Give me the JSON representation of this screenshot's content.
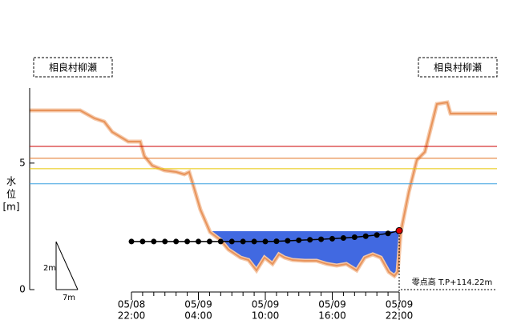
{
  "chart_data": {
    "type": "line",
    "station_left": "相良村柳瀬",
    "station_right": "相良村柳瀬",
    "y_label": [
      "水",
      "位",
      "[m]"
    ],
    "ylim": [
      0,
      8
    ],
    "yticks": [
      0,
      5
    ],
    "x_tick_labels": [
      [
        "05/08",
        "22:00"
      ],
      [
        "05/09",
        "04:00"
      ],
      [
        "05/09",
        "10:00"
      ],
      [
        "05/09",
        "16:00"
      ],
      [
        "05/09",
        "22:00"
      ]
    ],
    "values": [
      1.9,
      1.9,
      1.9,
      1.9,
      1.9,
      1.9,
      1.9,
      1.9,
      1.9,
      1.9,
      1.9,
      1.9,
      1.9,
      1.91,
      1.93,
      1.95,
      1.97,
      1.99,
      2.01,
      2.04,
      2.07,
      2.11,
      2.16,
      2.22,
      2.33
    ],
    "color": "#000000",
    "latest_color": "#e00000",
    "thresholds": [
      {
        "value": 5.66,
        "color": "#cc0000"
      },
      {
        "value": 5.19,
        "color": "#e07020"
      },
      {
        "value": 4.78,
        "color": "#e8c800"
      },
      {
        "value": 4.18,
        "color": "#3aa0e0"
      }
    ],
    "datum": "零点高 T.P+114.22m",
    "scale": {
      "vertical": "2m",
      "horizontal": "7m"
    }
  }
}
